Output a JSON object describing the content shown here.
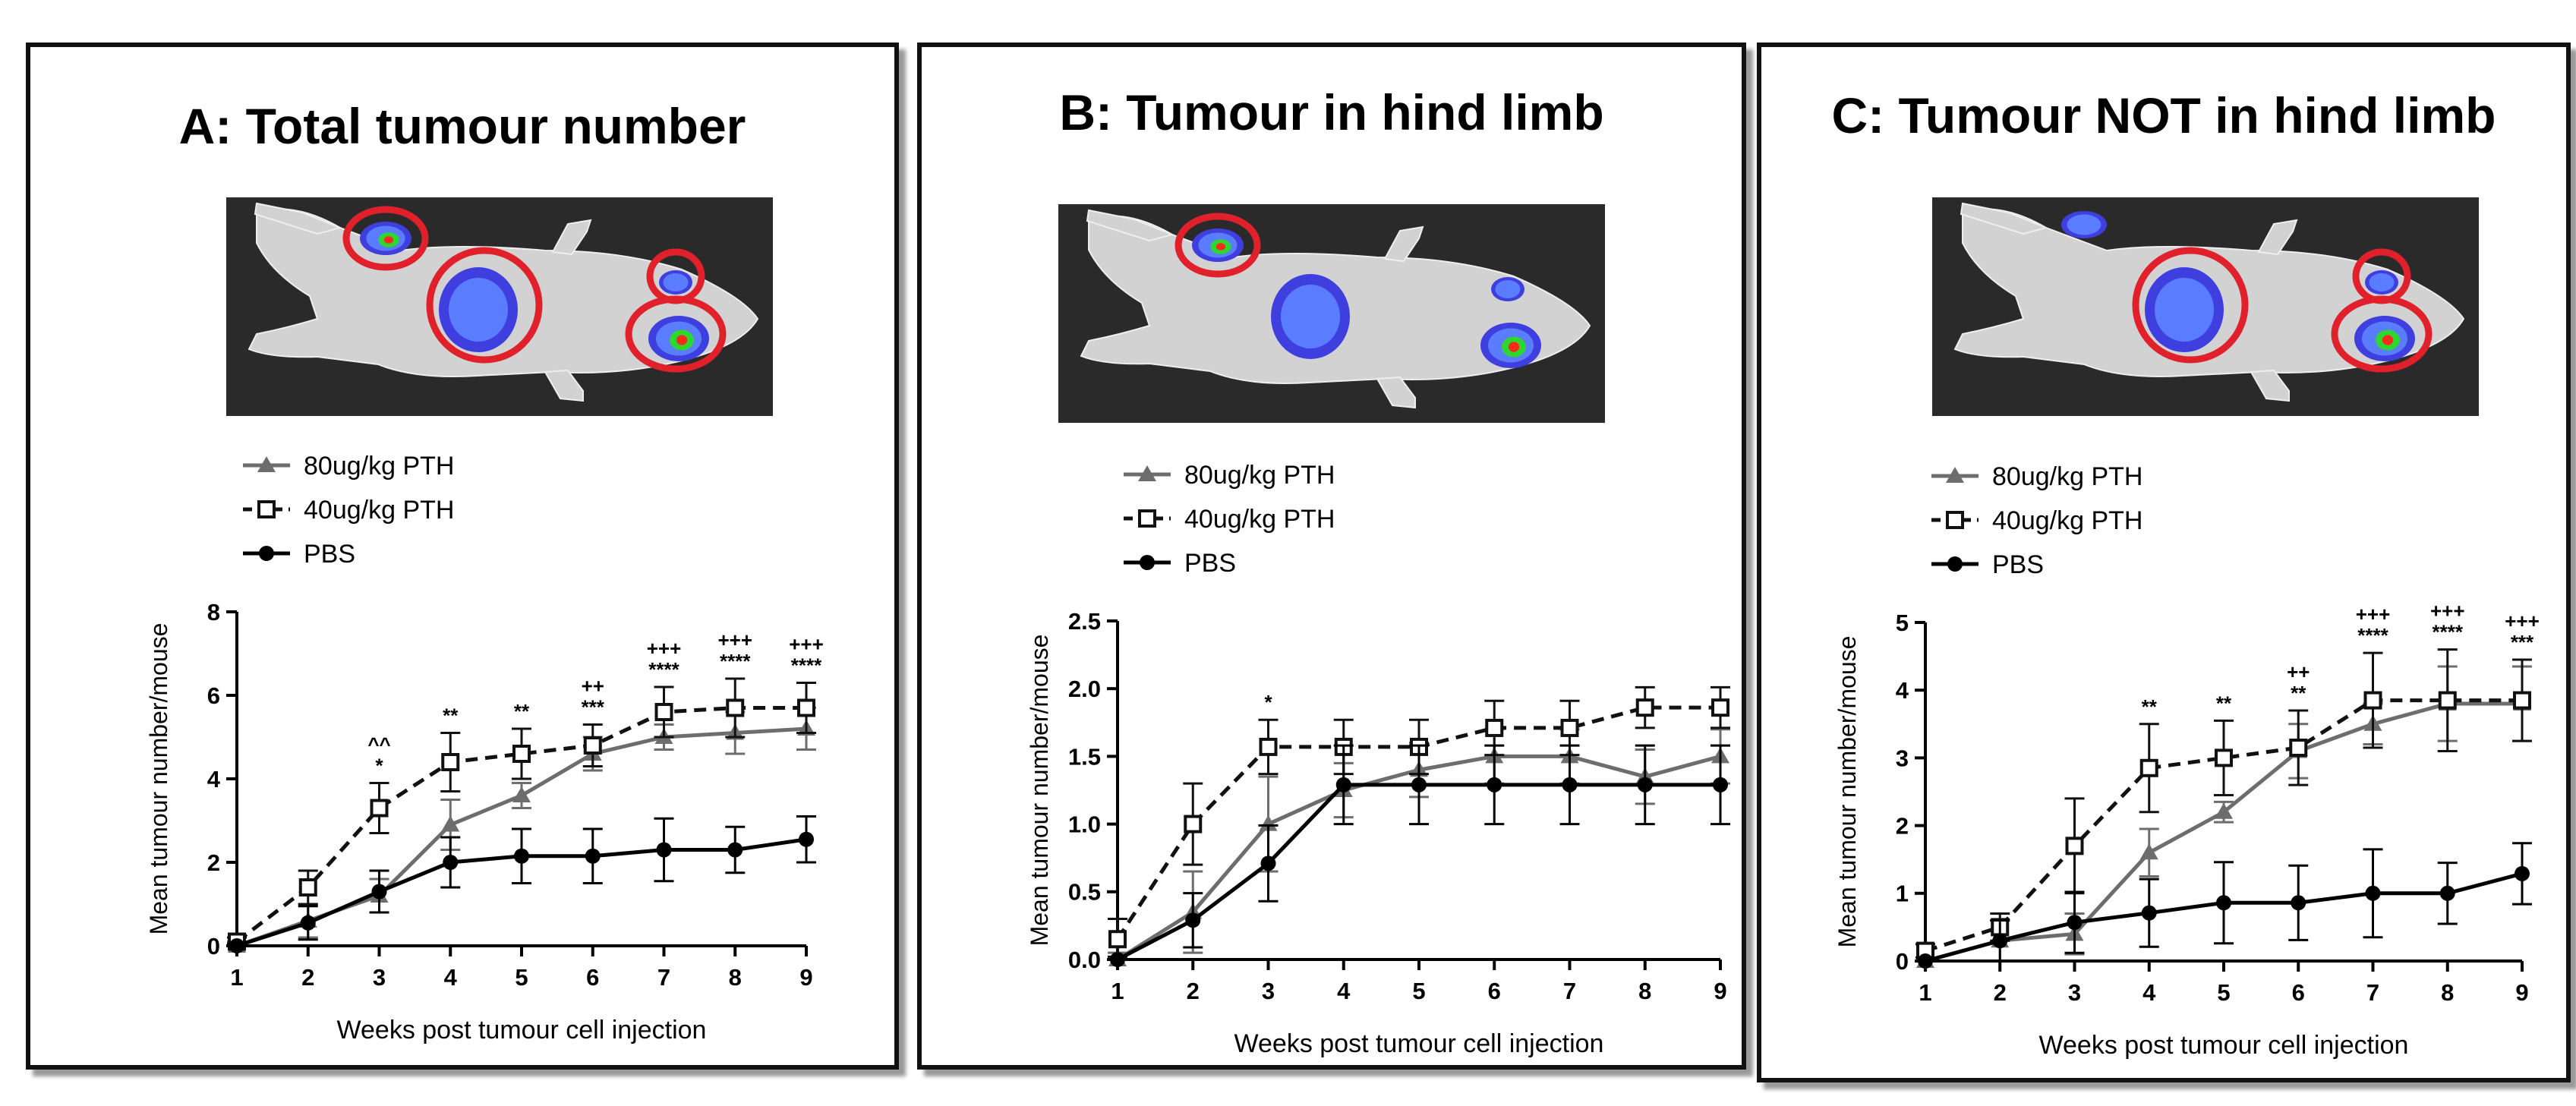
{
  "panels": [
    {
      "title": "A: Total tumour number",
      "marker_circles": 4
    },
    {
      "title": "B: Tumour in hind limb",
      "marker_circles": 1
    },
    {
      "title": "C: Tumour NOT in hind limb",
      "marker_circles": 3
    }
  ],
  "colors": {
    "pth80": "#6d6d6d",
    "pth40": "#111111",
    "pbs": "#000000",
    "marker_circle": "#e0202a",
    "imaging_background": "#2a2a2a"
  },
  "chart_data": [
    {
      "type": "line",
      "title": "",
      "xlabel": "Weeks post tumour cell injection",
      "ylabel": "Mean tumour number/mouse",
      "x": [
        1,
        2,
        3,
        4,
        5,
        6,
        7,
        8,
        9
      ],
      "xlim": [
        1,
        9
      ],
      "ylim": [
        0,
        8
      ],
      "yticks": [
        "0",
        "2",
        "4",
        "6",
        "8"
      ],
      "legend_position": "top-left",
      "grid": false,
      "series": [
        {
          "name": "80ug/kg PTH",
          "marker": "triangle",
          "dash": "solid",
          "values": [
            0,
            0.6,
            1.2,
            2.9,
            3.6,
            4.6,
            5.0,
            5.1,
            5.2
          ],
          "error": [
            0.1,
            0.4,
            0.4,
            0.6,
            0.3,
            0.4,
            0.3,
            0.5,
            0.5
          ]
        },
        {
          "name": "40ug/kg PTH",
          "marker": "open-square",
          "dash": "dashed",
          "values": [
            0.1,
            1.4,
            3.3,
            4.4,
            4.6,
            4.8,
            5.6,
            5.7,
            5.7
          ],
          "error": [
            0.1,
            0.4,
            0.6,
            0.7,
            0.6,
            0.5,
            0.6,
            0.7,
            0.6
          ]
        },
        {
          "name": "PBS",
          "marker": "circle",
          "dash": "solid",
          "values": [
            0,
            0.55,
            1.3,
            2.0,
            2.15,
            2.15,
            2.3,
            2.3,
            2.55
          ],
          "error": [
            0.05,
            0.4,
            0.5,
            0.6,
            0.65,
            0.65,
            0.75,
            0.55,
            0.55
          ]
        }
      ],
      "annotations": [
        {
          "x": 3,
          "lines": [
            "^^",
            "*"
          ]
        },
        {
          "x": 4,
          "lines": [
            "**"
          ]
        },
        {
          "x": 5,
          "lines": [
            "**"
          ]
        },
        {
          "x": 6,
          "lines": [
            "++",
            "***"
          ]
        },
        {
          "x": 7,
          "lines": [
            "+++",
            "****"
          ]
        },
        {
          "x": 8,
          "lines": [
            "+++",
            "****"
          ]
        },
        {
          "x": 9,
          "lines": [
            "+++",
            "****"
          ]
        }
      ]
    },
    {
      "type": "line",
      "title": "",
      "xlabel": "Weeks post tumour cell injection",
      "ylabel": "Mean tumour number/mouse",
      "x": [
        1,
        2,
        3,
        4,
        5,
        6,
        7,
        8,
        9
      ],
      "xlim": [
        1,
        9
      ],
      "ylim": [
        0,
        2.5
      ],
      "yticks": [
        "0.0",
        "0.5",
        "1.0",
        "1.5",
        "2.0",
        "2.5"
      ],
      "legend_position": "top-left",
      "grid": false,
      "series": [
        {
          "name": "80ug/kg PTH",
          "marker": "triangle",
          "dash": "solid",
          "values": [
            0,
            0.35,
            1.0,
            1.25,
            1.4,
            1.5,
            1.5,
            1.35,
            1.5
          ],
          "error": [
            0.05,
            0.3,
            0.35,
            0.2,
            0.2,
            0.2,
            0.2,
            0.2,
            0.2
          ]
        },
        {
          "name": "40ug/kg PTH",
          "marker": "open-square",
          "dash": "dashed",
          "values": [
            0.15,
            1.0,
            1.57,
            1.57,
            1.57,
            1.71,
            1.71,
            1.86,
            1.86
          ],
          "error": [
            0.15,
            0.3,
            0.2,
            0.2,
            0.2,
            0.2,
            0.2,
            0.15,
            0.15
          ]
        },
        {
          "name": "PBS",
          "marker": "circle",
          "dash": "solid",
          "values": [
            0,
            0.29,
            0.71,
            1.29,
            1.29,
            1.29,
            1.29,
            1.29,
            1.29
          ],
          "error": [
            0.02,
            0.2,
            0.28,
            0.29,
            0.29,
            0.29,
            0.29,
            0.29,
            0.29
          ]
        }
      ],
      "annotations": [
        {
          "x": 3,
          "lines": [
            "*"
          ]
        }
      ]
    },
    {
      "type": "line",
      "title": "",
      "xlabel": "Weeks post tumour cell injection",
      "ylabel": "Mean tumour number/mouse",
      "x": [
        1,
        2,
        3,
        4,
        5,
        6,
        7,
        8,
        9
      ],
      "xlim": [
        1,
        9
      ],
      "ylim": [
        0,
        5
      ],
      "yticks": [
        "0",
        "1",
        "2",
        "3",
        "4",
        "5"
      ],
      "legend_position": "top-left",
      "grid": false,
      "series": [
        {
          "name": "80ug/kg PTH",
          "marker": "triangle",
          "dash": "solid",
          "values": [
            0,
            0.3,
            0.4,
            1.6,
            2.2,
            3.1,
            3.5,
            3.8,
            3.8
          ],
          "error": [
            0.05,
            0.3,
            0.3,
            0.35,
            0.15,
            0.4,
            0.3,
            0.55,
            0.55
          ]
        },
        {
          "name": "40ug/kg PTH",
          "marker": "open-square",
          "dash": "dashed",
          "values": [
            0.15,
            0.5,
            1.7,
            2.85,
            3.0,
            3.15,
            3.85,
            3.85,
            3.85
          ],
          "error": [
            0.1,
            0.2,
            0.7,
            0.65,
            0.55,
            0.55,
            0.7,
            0.75,
            0.6
          ]
        },
        {
          "name": "PBS",
          "marker": "circle",
          "dash": "solid",
          "values": [
            0,
            0.3,
            0.57,
            0.71,
            0.86,
            0.86,
            1.0,
            1.0,
            1.29
          ],
          "error": [
            0.05,
            0.3,
            0.45,
            0.5,
            0.6,
            0.55,
            0.65,
            0.45,
            0.45
          ]
        }
      ],
      "annotations": [
        {
          "x": 4,
          "lines": [
            "**"
          ]
        },
        {
          "x": 5,
          "lines": [
            "**"
          ]
        },
        {
          "x": 6,
          "lines": [
            "++",
            "**"
          ]
        },
        {
          "x": 7,
          "lines": [
            "+++",
            "****"
          ]
        },
        {
          "x": 8,
          "lines": [
            "+++",
            "****"
          ]
        },
        {
          "x": 9,
          "lines": [
            "+++",
            "***"
          ]
        }
      ]
    }
  ]
}
